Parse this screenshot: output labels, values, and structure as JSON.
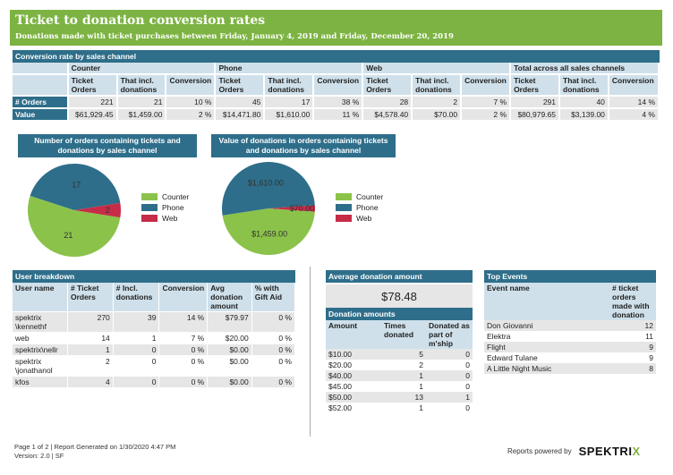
{
  "banner": {
    "title": "Ticket to donation conversion rates",
    "subtitle": "Donations made with ticket purchases between Friday, January 4, 2019 and Friday, December 20, 2019"
  },
  "conversion": {
    "section_title": "Conversion rate by sales channel",
    "groups": [
      "Counter",
      "Phone",
      "Web",
      "Total across all sales channels"
    ],
    "subheaders": [
      "Ticket Orders",
      "That incl. donations",
      "Conversion"
    ],
    "rows": [
      {
        "label": "# Orders",
        "cells": [
          "221",
          "21",
          "10 %",
          "45",
          "17",
          "38 %",
          "28",
          "2",
          "7 %",
          "291",
          "40",
          "14 %"
        ]
      },
      {
        "label": "Value",
        "cells": [
          "$61,929.45",
          "$1,459.00",
          "2 %",
          "$14,471.80",
          "$1,610.00",
          "11 %",
          "$4,578.40",
          "$70.00",
          "2 %",
          "$80,979.65",
          "$3,139.00",
          "4 %"
        ]
      }
    ]
  },
  "chart_data": [
    {
      "type": "pie",
      "title": "Number of orders containing tickets and donations by sales channel",
      "categories": [
        "Counter",
        "Phone",
        "Web"
      ],
      "values": [
        21,
        17,
        2
      ],
      "colors": [
        "#8bc34a",
        "#2e6e8a",
        "#c62c47"
      ]
    },
    {
      "type": "pie",
      "title": "Value of donations in orders containing tickets and donations by sales channel",
      "categories": [
        "Counter",
        "Phone",
        "Web"
      ],
      "values": [
        1459.0,
        1610.0,
        70.0
      ],
      "labels": [
        "$1,459.00",
        "$1,610.00",
        "$70.00"
      ],
      "colors": [
        "#8bc34a",
        "#2e6e8a",
        "#c62c47"
      ]
    }
  ],
  "user_breakdown": {
    "title": "User breakdown",
    "headers": [
      "User name",
      "# Ticket Orders",
      "# Incl. donations",
      "Conversion",
      "Avg donation amount",
      "% with Gift Aid"
    ],
    "rows": [
      [
        "spektrix \\kennethf",
        "270",
        "39",
        "14 %",
        "$79.97",
        "0 %"
      ],
      [
        "web",
        "14",
        "1",
        "7 %",
        "$20.00",
        "0 %"
      ],
      [
        "spektrix\\nellr",
        "1",
        "0",
        "0 %",
        "$0.00",
        "0 %"
      ],
      [
        "spektrix \\jonathanol",
        "2",
        "0",
        "0 %",
        "$0.00",
        "0 %"
      ],
      [
        "kfos",
        "4",
        "0",
        "0 %",
        "$0.00",
        "0 %"
      ]
    ]
  },
  "average_donation": {
    "title": "Average donation amount",
    "value": "$78.48"
  },
  "donation_amounts": {
    "title": "Donation amounts",
    "headers": [
      "Amount",
      "Times donated",
      "Donated as part of m'ship"
    ],
    "rows": [
      [
        "$10.00",
        "5",
        "0"
      ],
      [
        "$20.00",
        "2",
        "0"
      ],
      [
        "$40.00",
        "1",
        "0"
      ],
      [
        "$45.00",
        "1",
        "0"
      ],
      [
        "$50.00",
        "13",
        "1"
      ],
      [
        "$52.00",
        "1",
        "0"
      ]
    ]
  },
  "top_events": {
    "title": "Top Events",
    "headers": [
      "Event name",
      "# ticket orders made with donation"
    ],
    "rows": [
      [
        "Don Giovanni",
        "12"
      ],
      [
        "Elektra",
        "11"
      ],
      [
        "Flight",
        "9"
      ],
      [
        "Edward Tulane",
        "9"
      ],
      [
        "A Little Night Music",
        "8"
      ]
    ]
  },
  "footer": {
    "line1": "Page 1 of 2 | Report Generated on 1/30/2020 4:47 PM",
    "line2": "Version: 2.0 | SF",
    "powered_by": "Reports powered by",
    "logo_main": "SPEKTRI",
    "logo_x": "X"
  }
}
